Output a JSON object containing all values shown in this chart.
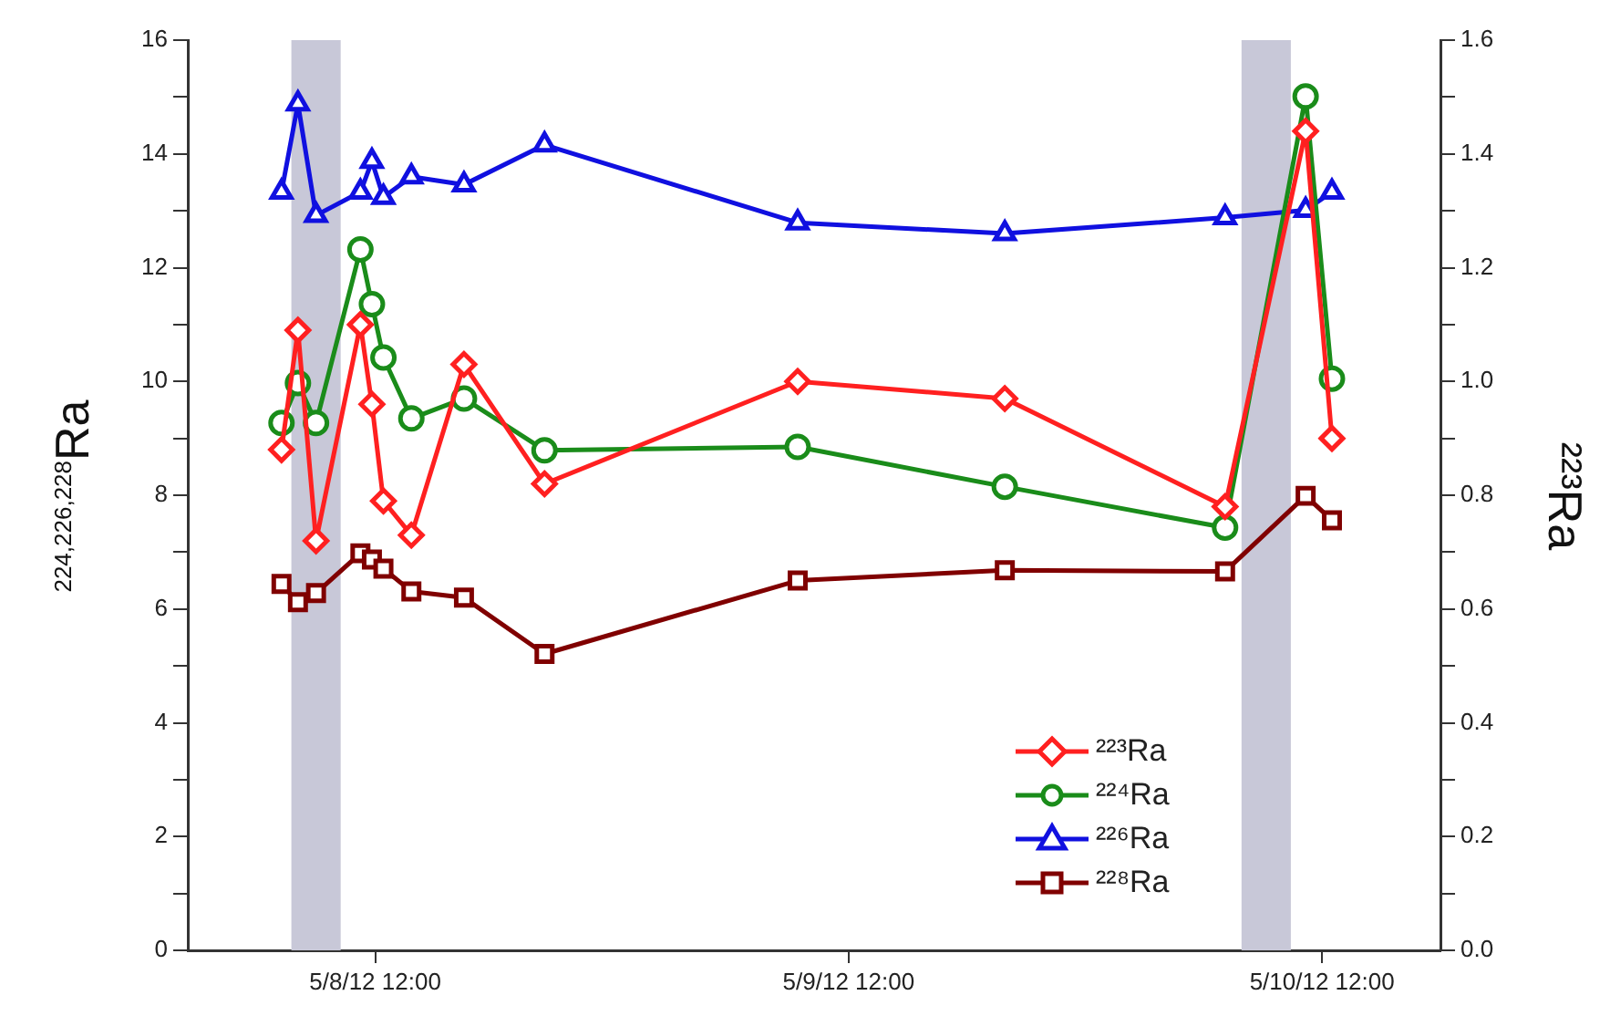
{
  "chart_data": {
    "type": "line",
    "ylabel": "$^{224,226,228}$Ra",
    "y2label": "²²³Ra",
    "x": [
      "--05-08T07:15",
      "--05-08T08:05",
      "--05-08T09:00",
      "--05-08T11:15",
      "--05-08T11:50",
      "--05-08T12:25",
      "--05-08T13:50",
      "--05-08T16:30",
      "--05-08T20:35",
      "--05-09T09:25",
      "--05-09T19:55",
      "--05-10T07:05",
      "--05-10T11:10",
      "--05-10T12:30"
    ],
    "xlim": [
      "--05-08T02:30",
      "--05-10T18:00"
    ],
    "xticks": [
      {
        "value": "--05-08T12:00",
        "label": "5/8/12 12:00"
      },
      {
        "value": "--05-09T12:00",
        "label": "5/9/12 12:00"
      },
      {
        "value": "--05-10T12:00",
        "label": "5/10/12 12:00"
      }
    ],
    "ylim": [
      0,
      16
    ],
    "yticks": [
      0,
      {
        "value": 1,
        "label": null
      },
      2,
      {
        "value": 3,
        "label": null
      },
      4,
      {
        "value": 5,
        "label": null
      },
      6,
      {
        "value": 7,
        "label": null
      },
      8,
      {
        "value": 9,
        "label": null
      },
      10,
      {
        "value": 11,
        "label": null
      },
      12,
      {
        "value": 13,
        "label": null
      },
      14,
      {
        "value": 15,
        "label": null
      },
      16
    ],
    "y2lim": [
      0,
      1.6
    ],
    "y2ticks": [
      {
        "value": 0,
        "label": "0.0"
      },
      {
        "value": 0.1,
        "label": null
      },
      {
        "value": 0.2,
        "label": "0.2"
      },
      {
        "value": 0.3,
        "label": null
      },
      {
        "value": 0.4,
        "label": "0.4"
      },
      {
        "value": 0.5,
        "label": null
      },
      {
        "value": 0.6,
        "label": "0.6"
      },
      {
        "value": 0.7,
        "label": null
      },
      {
        "value": 0.8,
        "label": "0.8"
      },
      {
        "value": 0.9,
        "label": null
      },
      {
        "value": 1,
        "label": "1.0"
      },
      {
        "value": 1.1,
        "label": null
      },
      {
        "value": 1.2,
        "label": "1.2"
      },
      {
        "value": 1.3,
        "label": null
      },
      {
        "value": 1.4,
        "label": "1.4"
      },
      {
        "value": 1.5,
        "label": null
      },
      {
        "value": 1.6,
        "label": "1.6"
      }
    ],
    "series": [
      {
        "name": "²²³Ra",
        "color": "#ff2020",
        "marker": "diamond",
        "axis": "y2",
        "values": [
          0.88,
          1.09,
          0.72,
          1.1,
          0.96,
          0.79,
          0.73,
          1.03,
          0.82,
          1.0,
          0.97,
          0.78,
          1.44,
          0.9
        ]
      },
      {
        "name": "²²⁴Ra",
        "color": "#1a8c1a",
        "marker": "circle",
        "values": [
          9.27,
          9.97,
          9.27,
          12.32,
          11.36,
          10.42,
          9.35,
          9.7,
          8.79,
          8.85,
          8.15,
          7.43,
          15.01,
          10.05
        ]
      },
      {
        "name": "²²⁶Ra",
        "color": "#1010e0",
        "marker": "triangle",
        "values": [
          13.33,
          14.88,
          12.92,
          13.33,
          13.87,
          13.24,
          13.6,
          13.46,
          14.16,
          12.79,
          12.6,
          12.88,
          13.01,
          13.33
        ]
      },
      {
        "name": "²²⁸Ra",
        "color": "#800000",
        "marker": "square",
        "values": [
          6.44,
          6.12,
          6.28,
          6.98,
          6.87,
          6.71,
          6.31,
          6.2,
          5.21,
          6.5,
          6.68,
          6.66,
          7.99,
          7.56
        ]
      }
    ],
    "bands": [
      {
        "axis": "x",
        "from": "--05-08T07:45",
        "to": "--05-08T10:15",
        "color": "#c8c8d8"
      },
      {
        "axis": "x",
        "from": "--05-10T07:55",
        "to": "--05-10T10:25",
        "color": "#c8c8d8"
      }
    ],
    "legend": "bottom right",
    "grid": false,
    "line_style": "solid"
  }
}
